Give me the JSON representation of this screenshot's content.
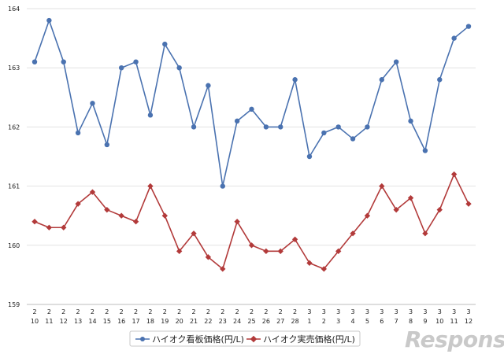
{
  "chart_data": {
    "type": "line",
    "ylim": [
      159,
      164
    ],
    "yticks": [
      159,
      160,
      161,
      162,
      163,
      164
    ],
    "grid": true,
    "legend_position": "bottom-center",
    "x_top": [
      "2",
      "2",
      "2",
      "2",
      "2",
      "2",
      "2",
      "2",
      "2",
      "2",
      "2",
      "2",
      "2",
      "2",
      "2",
      "2",
      "2",
      "2",
      "2",
      "3",
      "3",
      "3",
      "3",
      "3",
      "3",
      "3",
      "3",
      "3",
      "3",
      "3",
      "3"
    ],
    "x_bottom": [
      "10",
      "11",
      "12",
      "13",
      "14",
      "15",
      "16",
      "17",
      "18",
      "19",
      "20",
      "21",
      "22",
      "23",
      "24",
      "25",
      "26",
      "27",
      "28",
      "1",
      "2",
      "3",
      "4",
      "5",
      "6",
      "7",
      "8",
      "9",
      "10",
      "11",
      "12"
    ],
    "series": [
      {
        "name": "ハイオク看板価格(円/L)",
        "color": "#4a72b0",
        "marker": "circle",
        "values": [
          163.1,
          163.8,
          163.1,
          161.9,
          162.4,
          161.7,
          163.0,
          163.1,
          162.2,
          163.4,
          163.0,
          162.0,
          162.7,
          161.0,
          162.1,
          162.3,
          162.0,
          162.0,
          162.8,
          161.5,
          161.9,
          162.0,
          161.8,
          162.0,
          162.8,
          163.1,
          162.1,
          161.6,
          162.8,
          163.5,
          163.7
        ]
      },
      {
        "name": "ハイオク実売価格(円/L)",
        "color": "#b23a3a",
        "marker": "diamond",
        "values": [
          160.4,
          160.3,
          160.3,
          160.7,
          160.9,
          160.6,
          160.5,
          160.4,
          161.0,
          160.5,
          159.9,
          160.2,
          159.8,
          159.6,
          160.4,
          160.0,
          159.9,
          159.9,
          160.1,
          159.7,
          159.6,
          159.9,
          160.2,
          160.5,
          161.0,
          160.6,
          160.8,
          160.2,
          160.6,
          161.2,
          160.7
        ]
      }
    ]
  },
  "watermark": "Response."
}
